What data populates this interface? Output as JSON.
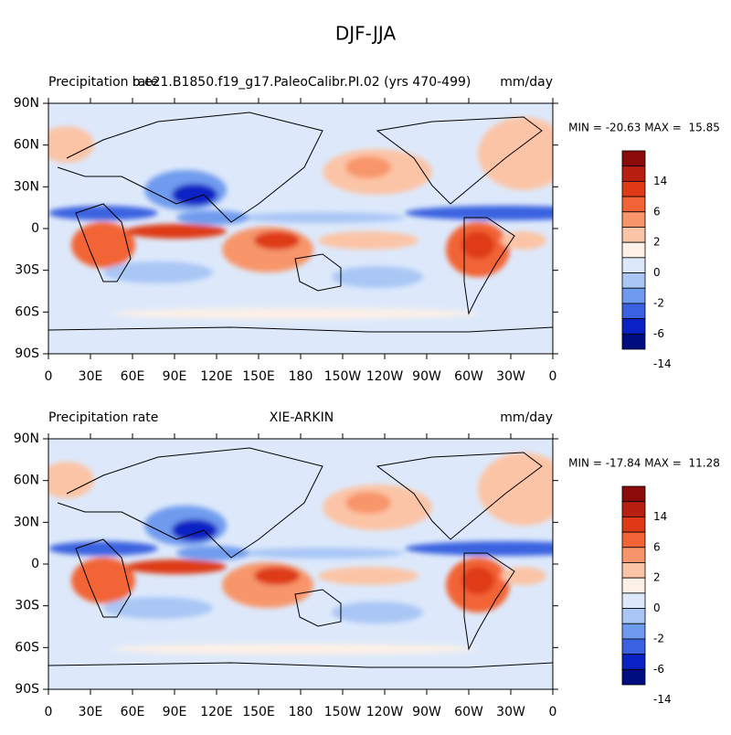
{
  "title": "DJF-JJA",
  "panels": [
    {
      "left_label": "Precipitation rate",
      "center_label": "b.e21.B1850.f19_g17.PaleoCalibr.PI.02 (yrs 470-499)",
      "right_label": "mm/day",
      "stats": "MIN = -20.63 MAX =  15.85",
      "y_ticks": [
        "90N",
        "60N",
        "30N",
        "0",
        "30S",
        "60S",
        "90S"
      ],
      "x_ticks": [
        "0",
        "30E",
        "60E",
        "90E",
        "120E",
        "150E",
        "180",
        "150W",
        "120W",
        "90W",
        "60W",
        "30W",
        "0"
      ]
    },
    {
      "left_label": "Precipitation rate",
      "center_label": "XIE-ARKIN",
      "right_label": "mm/day",
      "stats": "MIN = -17.84 MAX =  11.28",
      "y_ticks": [
        "90N",
        "60N",
        "30N",
        "0",
        "30S",
        "60S",
        "90S"
      ],
      "x_ticks": [
        "0",
        "30E",
        "60E",
        "90E",
        "120E",
        "150E",
        "180",
        "150W",
        "120W",
        "90W",
        "60W",
        "30W",
        "0"
      ]
    }
  ],
  "colorbar": {
    "labels": [
      "14",
      "6",
      "2",
      "0",
      "-2",
      "-6",
      "-14"
    ],
    "colors": [
      "#8b0a0a",
      "#b81f10",
      "#de3a18",
      "#f26436",
      "#f8956a",
      "#fcc4a6",
      "#fdf0e6",
      "#dde9fb",
      "#a9c6f5",
      "#6f9bee",
      "#3a62e0",
      "#0a22c4",
      "#000d80"
    ]
  }
}
